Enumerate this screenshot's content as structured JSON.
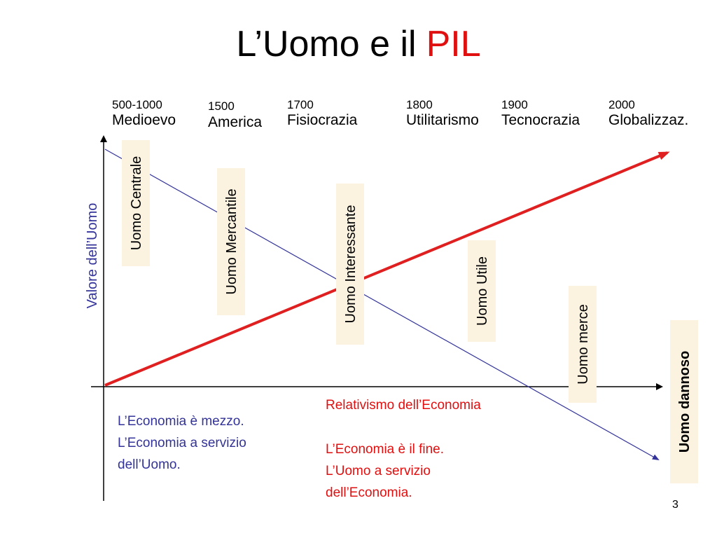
{
  "title": {
    "text": "L’Uomo e il",
    "highlight": "PIL"
  },
  "periods": [
    {
      "years": "500-1000",
      "name": "Medioevo"
    },
    {
      "years": "1500",
      "name": "America"
    },
    {
      "years": "1700",
      "name": "Fisiocrazia"
    },
    {
      "years": "1800",
      "name": "Utilitarismo"
    },
    {
      "years": "1900",
      "name": "Tecnocrazia"
    },
    {
      "years": "2000",
      "name": "Globalizzaz."
    }
  ],
  "axis_label": "Valore dell’Uomo",
  "stages": [
    "Uomo Centrale",
    "Uomo Mercantile",
    "Uomo Interessante",
    "Uomo Utile",
    "Uomo merce",
    "Uomo dannoso"
  ],
  "left_note": [
    "L’Economia è mezzo.",
    "L’Economia a servizio",
    "dell’Uomo."
  ],
  "right_heading": "Relativismo dell’Economia",
  "right_note": [
    "L’Economia è il fine.",
    "L’Uomo a servizio",
    "dell’Economia."
  ],
  "page_number": "3"
}
